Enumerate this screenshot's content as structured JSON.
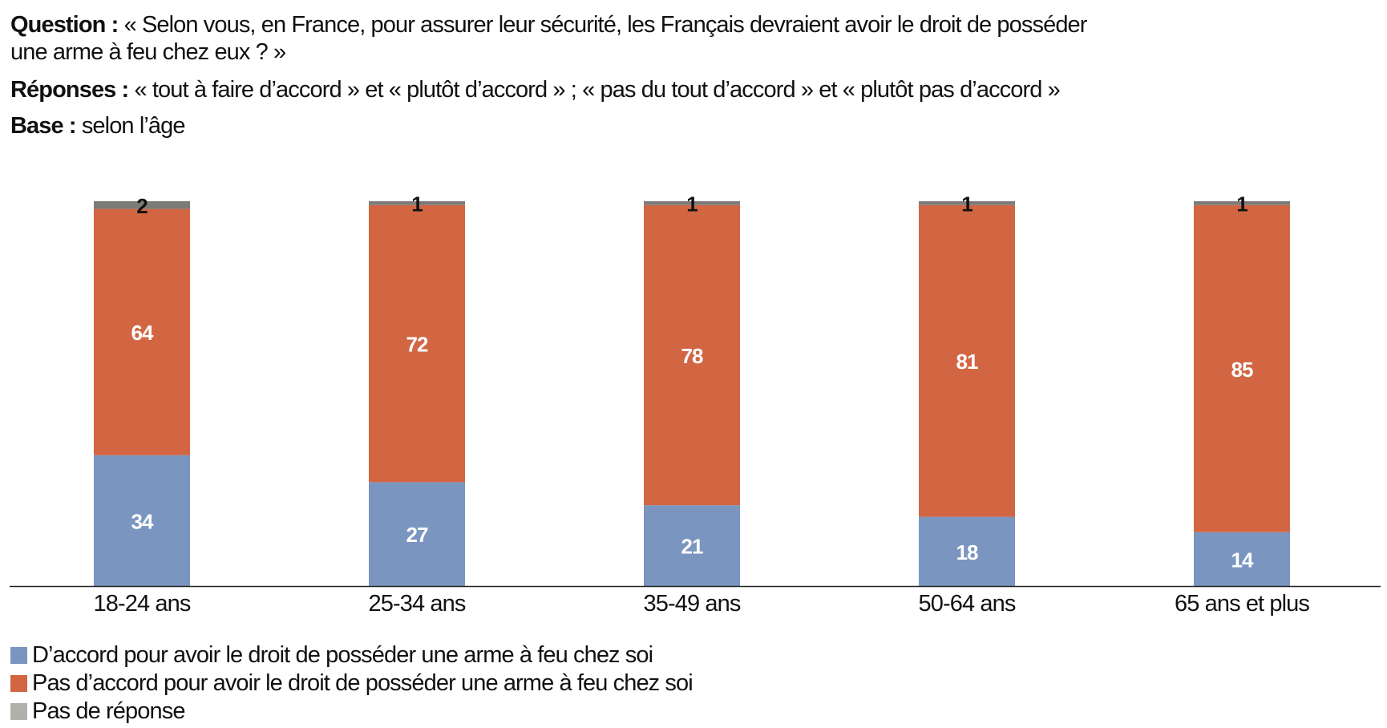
{
  "header": {
    "question_label": "Question :",
    "question_text_1": "« Selon vous, en France, pour assurer leur sécurité, les Français devraient avoir le droit de posséder",
    "question_text_2": "une arme à feu chez eux ? »",
    "responses_label": "Réponses :",
    "responses_text": "« tout à faire d’accord » et « plutôt d’accord » ; « pas du tout d’accord » et « plutôt pas d’accord »",
    "base_label": "Base :",
    "base_text": "selon l’âge"
  },
  "chart_data": {
    "type": "bar",
    "stacked": true,
    "categories": [
      "18-24 ans",
      "25-34 ans",
      "35-49 ans",
      "50-64 ans",
      "65 ans et plus"
    ],
    "series": [
      {
        "name": "D’accord pour avoir le droit de posséder une arme à feu chez soi",
        "color": "#7a96c0",
        "label_color": "#ffffff",
        "values": [
          34,
          27,
          21,
          18,
          14
        ]
      },
      {
        "name": "Pas d’accord pour avoir le droit de posséder une arme à feu chez soi",
        "color": "#d26643",
        "label_color": "#ffffff",
        "values": [
          64,
          72,
          78,
          81,
          85
        ]
      },
      {
        "name": "Pas de réponse",
        "color": "#7b7b78",
        "legend_color": "#b1b1ac",
        "label_color": "#111111",
        "values": [
          2,
          1,
          1,
          1,
          1
        ]
      }
    ],
    "ylim": [
      0,
      100
    ],
    "legend_position": "bottom-left",
    "grid": false
  }
}
